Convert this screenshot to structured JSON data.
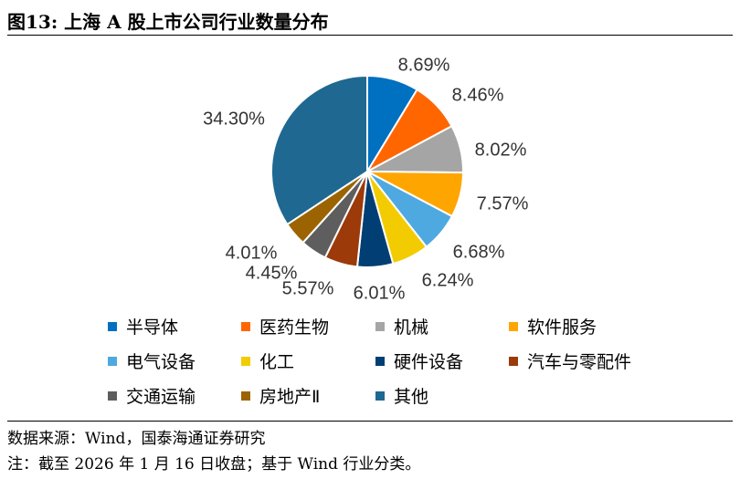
{
  "figure": {
    "title": "图13:  上海 A 股上市公司行业数量分布"
  },
  "chart_data": {
    "type": "pie",
    "title": "",
    "legend_position": "bottom",
    "slices": [
      {
        "name": "半导体",
        "value": 8.69,
        "label": "8.69%",
        "color": "#0070C0"
      },
      {
        "name": "医药生物",
        "value": 8.46,
        "label": "8.46%",
        "color": "#FF6600"
      },
      {
        "name": "机械",
        "value": 8.02,
        "label": "8.02%",
        "color": "#A5A5A5"
      },
      {
        "name": "软件服务",
        "value": 7.57,
        "label": "7.57%",
        "color": "#FFA500"
      },
      {
        "name": "电气设备",
        "value": 6.68,
        "label": "6.68%",
        "color": "#4EA9E0"
      },
      {
        "name": "化工",
        "value": 6.24,
        "label": "6.24%",
        "color": "#F2CC00"
      },
      {
        "name": "硬件设备",
        "value": 6.01,
        "label": "6.01%",
        "color": "#003E73"
      },
      {
        "name": "汽车与零配件",
        "value": 5.57,
        "label": "5.57%",
        "color": "#9C3A0A"
      },
      {
        "name": "交通运输",
        "value": 4.45,
        "label": "4.45%",
        "color": "#5E5E5E"
      },
      {
        "name": "房地产Ⅱ",
        "value": 4.01,
        "label": "4.01%",
        "color": "#9C6400"
      },
      {
        "name": "其他",
        "value": 34.3,
        "label": "34.30%",
        "color": "#1F6891"
      }
    ]
  },
  "footer": {
    "source": "数据来源：Wind，国泰海通证券研究",
    "note": "注：截至 2026 年 1 月 16 日收盘；基于 Wind 行业分类。"
  }
}
